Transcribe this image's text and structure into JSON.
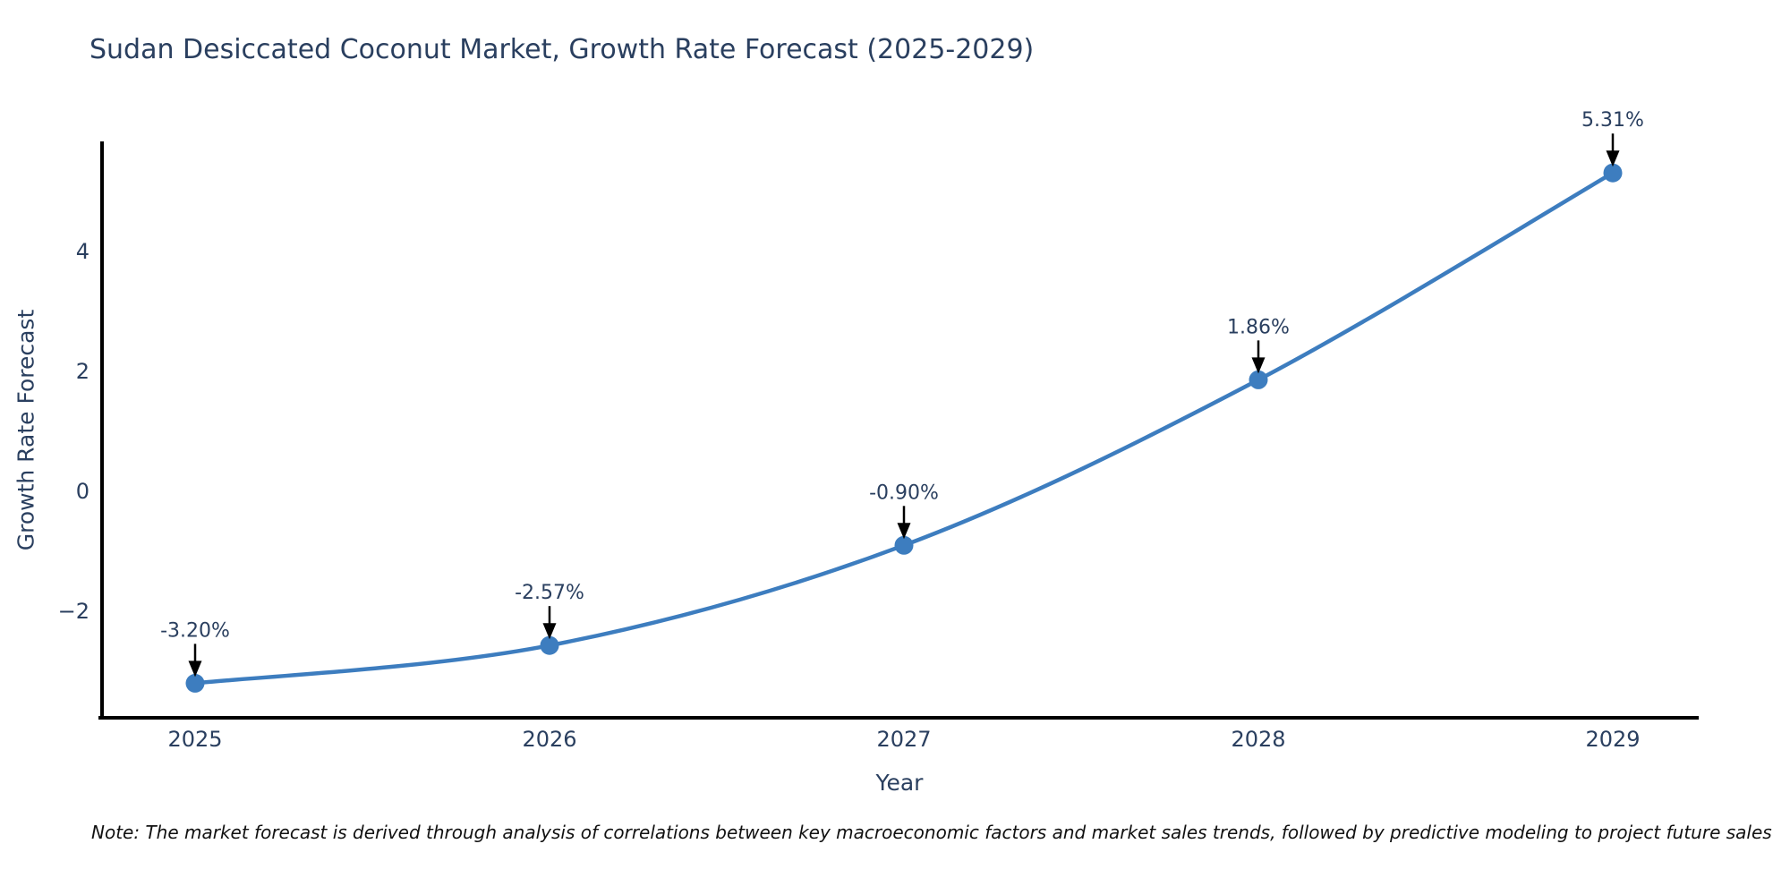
{
  "title": "Sudan Desiccated Coconut Market, Growth Rate Forecast (2025-2029)",
  "xlabel": "Year",
  "ylabel": "Growth Rate Forecast",
  "note": "Note: The market forecast is derived through analysis of correlations between key macroeconomic factors and market sales trends, followed by predictive modeling to project future sales",
  "colors": {
    "line": "#3d7dbf",
    "marker": "#3d7dbf",
    "axis": "#000000",
    "text": "#2a3f5f",
    "arrow": "#000000"
  },
  "chart_data": {
    "type": "line",
    "line_shape": "spline",
    "x": [
      2025,
      2026,
      2027,
      2028,
      2029
    ],
    "values": [
      -3.2,
      -2.57,
      -0.9,
      1.86,
      5.31
    ],
    "point_labels": [
      "-3.20%",
      "-2.57%",
      "-0.90%",
      "1.86%",
      "5.31%"
    ],
    "title": "Sudan Desiccated Coconut Market, Growth Rate Forecast (2025-2029)",
    "xlabel": "Year",
    "ylabel": "Growth Rate Forecast",
    "xticks": [
      "2025",
      "2026",
      "2027",
      "2028",
      "2029"
    ],
    "yticks": [
      -2,
      0,
      2,
      4
    ],
    "ylim": [
      -3.8,
      6.0
    ],
    "grid": false,
    "legend": "none",
    "markers": true,
    "annotations_arrows": true
  }
}
